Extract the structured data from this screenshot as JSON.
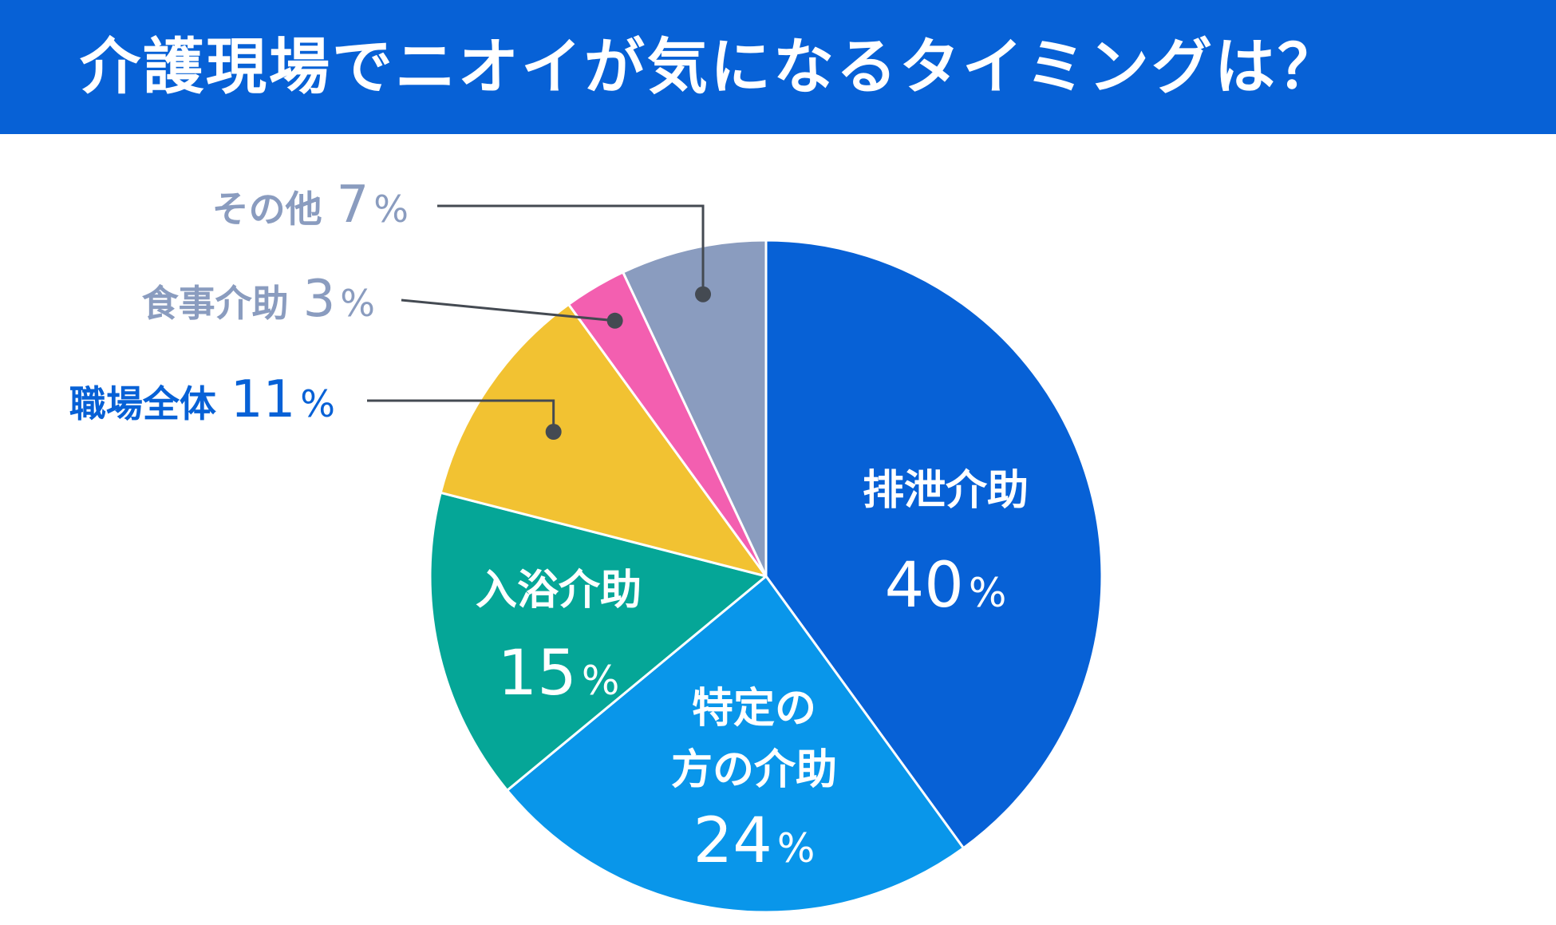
{
  "header": {
    "title": "介護現場でニオイが気になるタイミングは？"
  },
  "colors": {
    "title_bar": "#0761d6",
    "leader_line": "#444a52"
  },
  "chart_data": {
    "type": "pie",
    "title": "介護現場でニオイが気になるタイミングは？",
    "start": "12 o'clock",
    "direction": "clockwise",
    "unit": "%",
    "slices": [
      {
        "label": "排泄介助",
        "lines": [
          "排泄介助"
        ],
        "value": 40,
        "value_text": "40",
        "color": "#0761d6",
        "label_placement": "inside",
        "label_color": "#ffffff"
      },
      {
        "label": "特定の方の介助",
        "lines": [
          "特定の",
          "方の介助"
        ],
        "value": 24,
        "value_text": "24",
        "color": "#0996ea",
        "label_placement": "inside",
        "label_color": "#ffffff"
      },
      {
        "label": "入浴介助",
        "lines": [
          "入浴介助"
        ],
        "value": 15,
        "value_text": "15",
        "color": "#05a697",
        "label_placement": "inside",
        "label_color": "#ffffff"
      },
      {
        "label": "職場全体",
        "lines": [
          "職場全体"
        ],
        "value": 11,
        "value_text": "11",
        "color": "#f2c232",
        "label_placement": "outside",
        "label_color": "#0761d6"
      },
      {
        "label": "食事介助",
        "lines": [
          "食事介助"
        ],
        "value": 3,
        "value_text": "3",
        "color": "#f35fb0",
        "label_placement": "outside",
        "label_color": "#8a9cbf"
      },
      {
        "label": "その他",
        "lines": [
          "その他"
        ],
        "value": 7,
        "value_text": "7",
        "color": "#8a9cbf",
        "label_placement": "outside",
        "label_color": "#8a9cbf"
      }
    ]
  }
}
